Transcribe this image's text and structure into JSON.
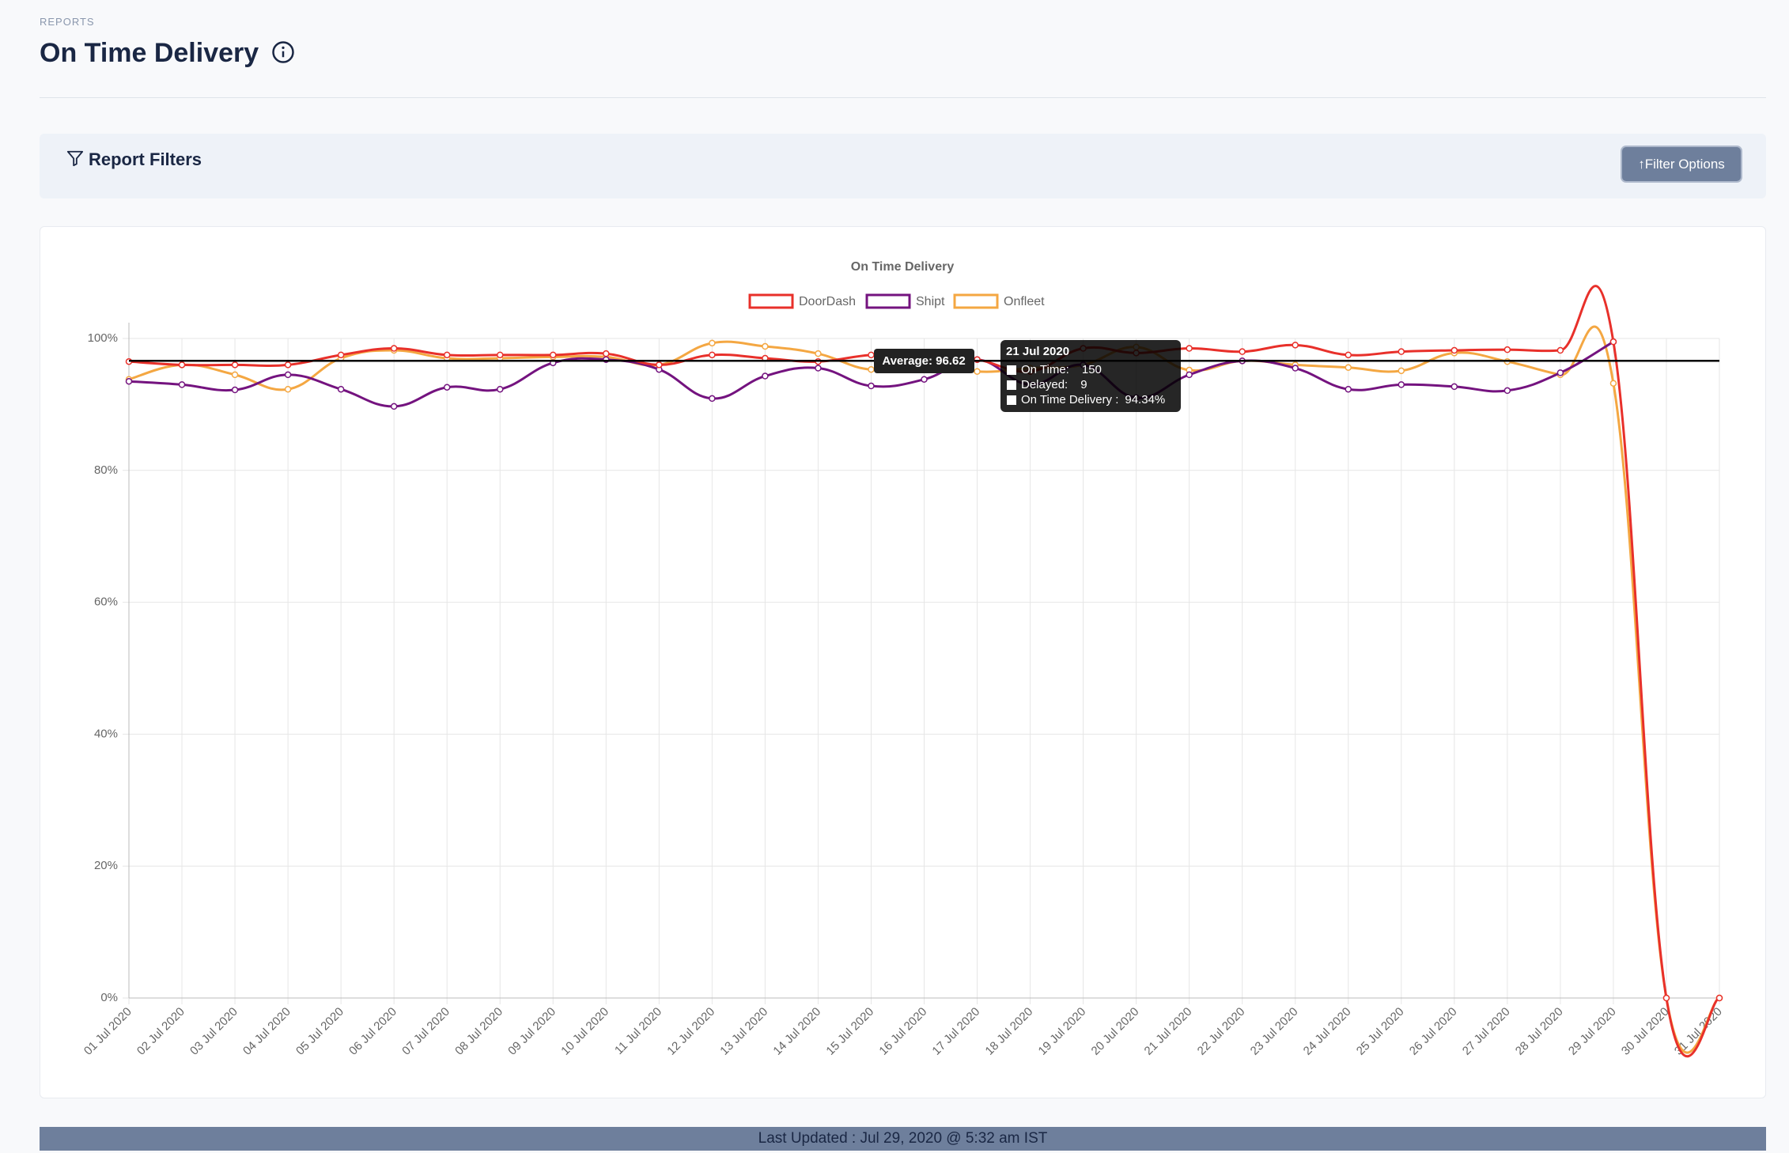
{
  "header": {
    "breadcrumb": "REPORTS",
    "title": "On Time Delivery"
  },
  "filters": {
    "title": "Report Filters",
    "button": "↑Filter Options"
  },
  "footer": {
    "text": "Last Updated : Jul 29, 2020 @ 5:32 am IST"
  },
  "chart_data": {
    "type": "line",
    "title": "On Time Delivery",
    "categories": [
      "01 Jul 2020",
      "02 Jul 2020",
      "03 Jul 2020",
      "04 Jul 2020",
      "05 Jul 2020",
      "06 Jul 2020",
      "07 Jul 2020",
      "08 Jul 2020",
      "09 Jul 2020",
      "10 Jul 2020",
      "11 Jul 2020",
      "12 Jul 2020",
      "13 Jul 2020",
      "14 Jul 2020",
      "15 Jul 2020",
      "16 Jul 2020",
      "17 Jul 2020",
      "18 Jul 2020",
      "19 Jul 2020",
      "20 Jul 2020",
      "21 Jul 2020",
      "22 Jul 2020",
      "23 Jul 2020",
      "24 Jul 2020",
      "25 Jul 2020",
      "26 Jul 2020",
      "27 Jul 2020",
      "28 Jul 2020",
      "29 Jul 2020",
      "30 Jul 2020",
      "31 Jul 2020"
    ],
    "series": [
      {
        "name": "DoorDash",
        "color": "#e8302a",
        "values": [
          96.5,
          96,
          96,
          96,
          97.5,
          98.5,
          97.5,
          97.5,
          97.5,
          97.7,
          96,
          97.5,
          97,
          96.5,
          97.5,
          97.5,
          96.8,
          95,
          98.5,
          97.8,
          98.5,
          98,
          99,
          97.5,
          98,
          98.2,
          98.3,
          98.2,
          99.5,
          0,
          0
        ]
      },
      {
        "name": "Shipt",
        "color": "#74137f",
        "values": [
          93.5,
          93,
          92.2,
          94.5,
          92.3,
          89.7,
          92.6,
          92.3,
          96.3,
          96.8,
          95.3,
          90.9,
          94.3,
          95.5,
          92.8,
          93.8,
          96.8,
          93,
          96,
          91,
          94.5,
          96.6,
          95.5,
          92.3,
          93,
          92.7,
          92.1,
          94.8,
          99.5,
          null,
          null
        ]
      },
      {
        "name": "Onfleet",
        "color": "#f4a742",
        "values": [
          93.8,
          96,
          94.5,
          92.3,
          97,
          98.2,
          97,
          97,
          97.2,
          97.2,
          96,
          99.3,
          98.8,
          97.7,
          95.3,
          96.5,
          95,
          95.5,
          96,
          98.7,
          95.2,
          96.6,
          96,
          95.6,
          95.1,
          97.8,
          96.5,
          94.5,
          93.2,
          0,
          0
        ]
      }
    ],
    "ylim": [
      0,
      100
    ],
    "yticks": [
      {
        "value": 0,
        "label": "0%"
      },
      {
        "value": 20,
        "label": "20%"
      },
      {
        "value": 40,
        "label": "40%"
      },
      {
        "value": 60,
        "label": "60%"
      },
      {
        "value": 80,
        "label": "80%"
      },
      {
        "value": 100,
        "label": "100%"
      }
    ],
    "grid": true,
    "legend": "top",
    "average": {
      "value": 96.62,
      "label": "Average: 96.62",
      "color": "#000000"
    },
    "tooltip": {
      "title": "21 Jul 2020",
      "items": [
        {
          "label": "On Time:",
          "value": "150"
        },
        {
          "label": "Delayed:",
          "value": "9"
        },
        {
          "label": "On Time Delivery :",
          "value": "94.34%"
        }
      ]
    }
  }
}
